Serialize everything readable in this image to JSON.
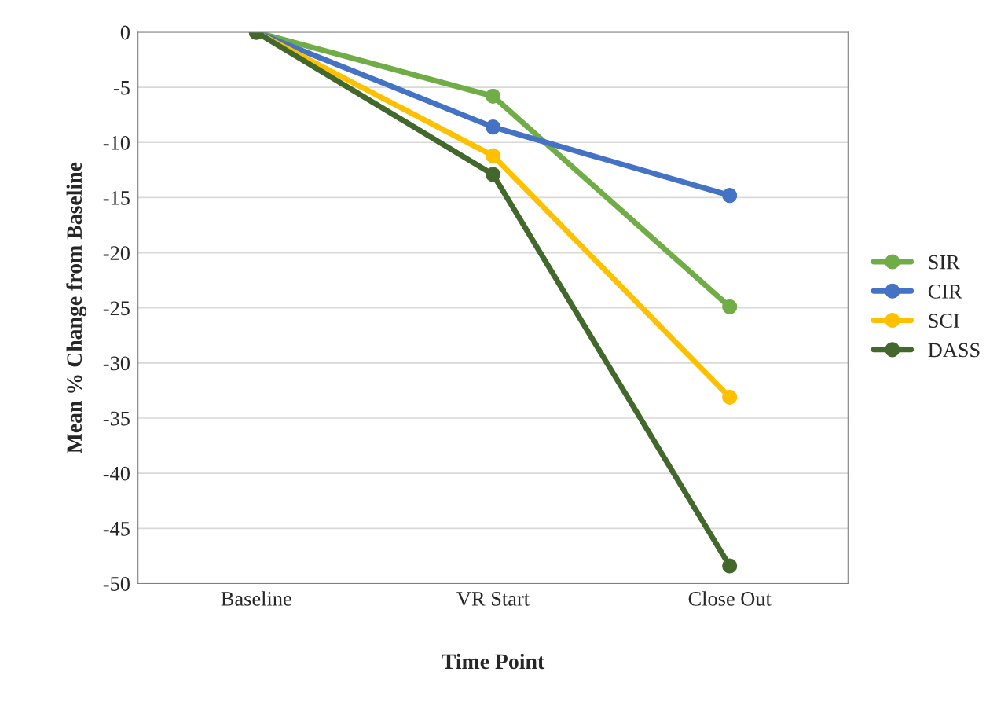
{
  "chart_data": {
    "type": "line",
    "xlabel": "Time Point",
    "ylabel": "Mean % Change from Baseline",
    "categories": [
      "Baseline",
      "VR Start",
      "Close Out"
    ],
    "series": [
      {
        "name": "SIR",
        "color": "#70ad47",
        "values": [
          0,
          -5.8,
          -24.9
        ]
      },
      {
        "name": "CIR",
        "color": "#4472c4",
        "values": [
          0,
          -8.6,
          -14.8
        ]
      },
      {
        "name": "SCI",
        "color": "#ffc000",
        "values": [
          0,
          -11.2,
          -33.1
        ]
      },
      {
        "name": "DASS",
        "color": "#43682b",
        "values": [
          0,
          -12.9,
          -48.4
        ]
      }
    ],
    "ylim": [
      -50,
      0
    ],
    "yticks": [
      -50,
      -45,
      -40,
      -35,
      -30,
      -25,
      -20,
      -15,
      -10,
      -5,
      0
    ],
    "grid": "y",
    "legend": "right",
    "marker": "circle",
    "line_style": "solid"
  }
}
